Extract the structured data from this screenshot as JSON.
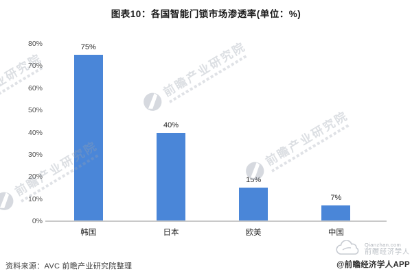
{
  "title": "图表10：各国智能门锁市场渗透率(单位：%)",
  "chart_data": {
    "type": "bar",
    "title": "图表10：各国智能门锁市场渗透率(单位：%)",
    "categories": [
      "韩国",
      "日本",
      "欧美",
      "中国"
    ],
    "values": [
      75,
      40,
      15,
      7
    ],
    "value_labels": [
      "75%",
      "40%",
      "15%",
      "7%"
    ],
    "unit": "%",
    "xlabel": "",
    "ylabel": "",
    "ylim": [
      0,
      80
    ],
    "ytick_step": 10,
    "ytick_labels": [
      "0%",
      "10%",
      "20%",
      "30%",
      "40%",
      "50%",
      "60%",
      "70%",
      "80%"
    ],
    "grid": false,
    "legend": null,
    "bar_color": "#4a86d8"
  },
  "watermark": {
    "brand_text": "前瞻产业研究院"
  },
  "footer": {
    "source": "资料来源：AVC 前瞻产业研究院整理",
    "credit": "@前瞻经济学人APP",
    "logo_text_top": "Qianzhan.com",
    "logo_text_bottom": "前瞻经济学人"
  },
  "colors": {
    "bar": "#4a86d8",
    "axis_line": "#c9c9c9",
    "title_text": "#1a1a1a",
    "label_text": "#262626",
    "tick_text": "#4d4d4d",
    "watermark": "#98a0ae"
  }
}
